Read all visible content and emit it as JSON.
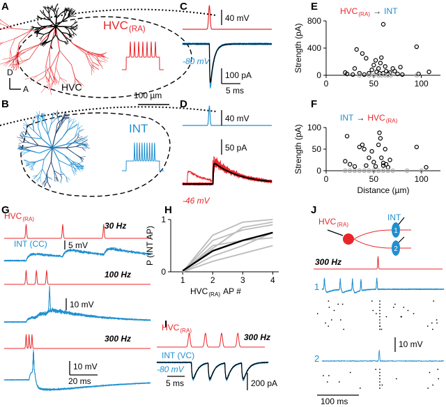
{
  "figure": {
    "panels": [
      "A",
      "B",
      "C",
      "D",
      "E",
      "F",
      "G",
      "H",
      "I",
      "J"
    ],
    "A": {
      "cell": {
        "text": "HVC",
        "sub": "(RA)"
      },
      "dorsal": "D",
      "anterior": "A",
      "region": "HVC",
      "scale": "100 µm"
    },
    "B": {
      "cell": "INT"
    },
    "C": {
      "voltage_scale": "40 mV",
      "holding": "-80 mV",
      "current_scale": "100 pA",
      "time_scale": "5 ms"
    },
    "D": {
      "voltage_scale": "40 mV",
      "current_scale": "50 pA",
      "holding": "-46 mV"
    },
    "G": {
      "cell": {
        "text": "HVC",
        "sub": "(RA)"
      },
      "rate_1": "30 Hz",
      "int_cell": "INT (CC)",
      "scale_1": "5 mV",
      "rate_2": "100 Hz",
      "scale_2": "10 mV",
      "rate_3": "300 Hz",
      "scale_3": "10 mV",
      "time_scale": "20 ms"
    },
    "I": {
      "cell": {
        "text": "HVC",
        "sub": "(RA)"
      },
      "rate": "300 Hz",
      "int_cell": "INT (VC)",
      "holding": "-80 mV",
      "time_scale": "5 ms",
      "current_scale": "200 pA"
    },
    "J": {
      "cell": {
        "text": "HVC",
        "sub": "(RA)"
      },
      "int_cell": "INT",
      "electrode_1": "1",
      "electrode_2": "2",
      "rate": "300 Hz",
      "trace_1": "1",
      "voltage_scale": "10 mV",
      "trace_2": "2",
      "time_scale": "100 ms"
    }
  },
  "chart_data": [
    {
      "type": "scatter",
      "title": {
        "source": {
          "text": "HVC",
          "sub": "(RA)"
        },
        "source_color": "#e8262a",
        "arrow": "→",
        "target": "INT",
        "target_color": "#1f8fd0"
      },
      "y_label": "Strength (pA)",
      "xlim": [
        0,
        120
      ],
      "xticks": [
        0,
        50,
        100
      ],
      "ylim": [
        0,
        800
      ],
      "yticks": [
        0,
        400,
        800
      ],
      "series": [
        {
          "color": "#000000",
          "x": [
            20,
            22,
            28,
            30,
            32,
            35,
            38,
            40,
            42,
            45,
            48,
            50,
            52,
            53,
            55,
            56,
            57,
            58,
            60,
            60,
            62,
            63,
            65,
            67,
            70,
            72,
            75,
            78,
            80,
            95,
            97,
            108
          ],
          "values": [
            40,
            20,
            10,
            100,
            380,
            30,
            320,
            10,
            250,
            30,
            80,
            150,
            220,
            50,
            100,
            30,
            180,
            260,
            750,
            30,
            130,
            60,
            20,
            40,
            100,
            60,
            20,
            120,
            10,
            420,
            20,
            50
          ]
        },
        {
          "color": "#aaaaaa",
          "x": [
            35,
            45,
            50,
            55,
            58,
            62,
            65,
            68,
            95
          ],
          "values": [
            0,
            0,
            0,
            0,
            0,
            0,
            0,
            0,
            0
          ]
        }
      ]
    },
    {
      "type": "scatter",
      "title": {
        "source": "INT",
        "source_color": "#1f8fd0",
        "arrow": "→",
        "target": {
          "text": "HVC",
          "sub": "(RA)"
        },
        "target_color": "#e8262a"
      },
      "y_label": "Strength (pA)",
      "x_label": "Distance (µm)",
      "xlim": [
        0,
        120
      ],
      "xticks": [
        0,
        50,
        100
      ],
      "ylim": [
        0,
        100
      ],
      "yticks": [
        0,
        50,
        100
      ],
      "series": [
        {
          "color": "#000000",
          "x": [
            20,
            22,
            25,
            30,
            35,
            38,
            40,
            42,
            45,
            48,
            50,
            52,
            55,
            56,
            57,
            58,
            60,
            60,
            62,
            63,
            65,
            67,
            95,
            105
          ],
          "values": [
            22,
            80,
            15,
            10,
            55,
            60,
            50,
            12,
            30,
            45,
            20,
            10,
            60,
            88,
            75,
            30,
            12,
            18,
            50,
            15,
            8,
            25,
            55,
            8
          ]
        },
        {
          "color": "#aaaaaa",
          "x": [
            20,
            25,
            30,
            35,
            40,
            45,
            50,
            55,
            60,
            65,
            70,
            85,
            100
          ],
          "values": [
            0,
            0,
            0,
            0,
            0,
            0,
            0,
            0,
            0,
            0,
            0,
            0,
            0
          ]
        }
      ]
    },
    {
      "type": "line",
      "y_label": "P (INT AP)",
      "x_label": {
        "text": "HVC",
        "sub": "(RA)",
        "post": "AP #"
      },
      "x": [
        1,
        2,
        3,
        4
      ],
      "xlim": [
        0.6,
        4.2
      ],
      "xticks": [
        1,
        2,
        3,
        4
      ],
      "ylim": [
        0,
        1
      ],
      "yticks": [
        0,
        1
      ],
      "series": [
        {
          "color": "#bbbbbb",
          "values": [
            0,
            0.7,
            0.95,
            1
          ]
        },
        {
          "color": "#bbbbbb",
          "values": [
            0,
            0.6,
            0.8,
            0.9
          ]
        },
        {
          "color": "#bbbbbb",
          "values": [
            0,
            0.45,
            0.85,
            0.95
          ]
        },
        {
          "color": "#bbbbbb",
          "values": [
            0,
            0.3,
            0.5,
            0.75
          ]
        },
        {
          "color": "#bbbbbb",
          "values": [
            0,
            0.2,
            0.35,
            0.5
          ]
        },
        {
          "color": "#bbbbbb",
          "values": [
            0,
            0.5,
            0.6,
            0.65
          ]
        },
        {
          "color": "#000000",
          "values": [
            0.02,
            0.4,
            0.6,
            0.75
          ]
        }
      ]
    }
  ]
}
